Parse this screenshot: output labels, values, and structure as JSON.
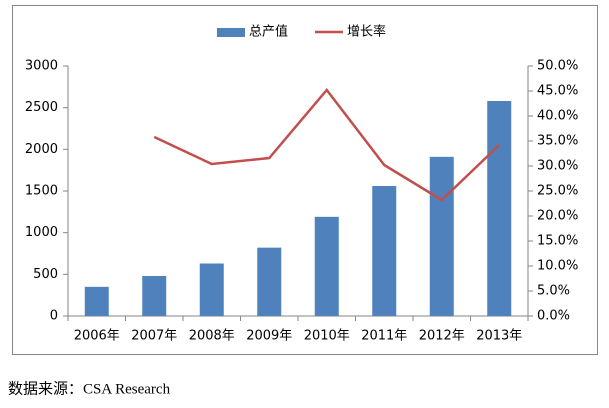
{
  "chart_data": {
    "type": "bar-line",
    "categories": [
      "2006年",
      "2007年",
      "2008年",
      "2009年",
      "2010年",
      "2011年",
      "2012年",
      "2013年"
    ],
    "series": [
      {
        "name": "总产值",
        "type": "bar",
        "color": "#4f81bd",
        "values": [
          350,
          480,
          630,
          820,
          1190,
          1560,
          1910,
          2580
        ]
      },
      {
        "name": "增长率",
        "type": "line",
        "axis": "y2",
        "color": "#c0504d",
        "values": [
          null,
          35.8,
          30.4,
          31.6,
          45.2,
          30.2,
          23.2,
          34.2
        ]
      }
    ],
    "ylim": [
      0,
      3000
    ],
    "yticks": [
      0,
      500,
      1000,
      1500,
      2000,
      2500,
      3000
    ],
    "y2lim": [
      0,
      50
    ],
    "y2ticks": [
      {
        "value": 0,
        "label": "0.0%"
      },
      {
        "value": 5,
        "label": "5.0%"
      },
      {
        "value": 10,
        "label": "10.0%"
      },
      {
        "value": 15,
        "label": "15.0%"
      },
      {
        "value": 20,
        "label": "20.0%"
      },
      {
        "value": 25,
        "label": "25.0%"
      },
      {
        "value": 30,
        "label": "30.0%"
      },
      {
        "value": 35,
        "label": "35.0%"
      },
      {
        "value": 40,
        "label": "40.0%"
      },
      {
        "value": 45,
        "label": "45.0%"
      },
      {
        "value": 50,
        "label": "50.0%"
      }
    ],
    "grid": false,
    "legend": "top",
    "source": "数据来源：CSA Research"
  }
}
